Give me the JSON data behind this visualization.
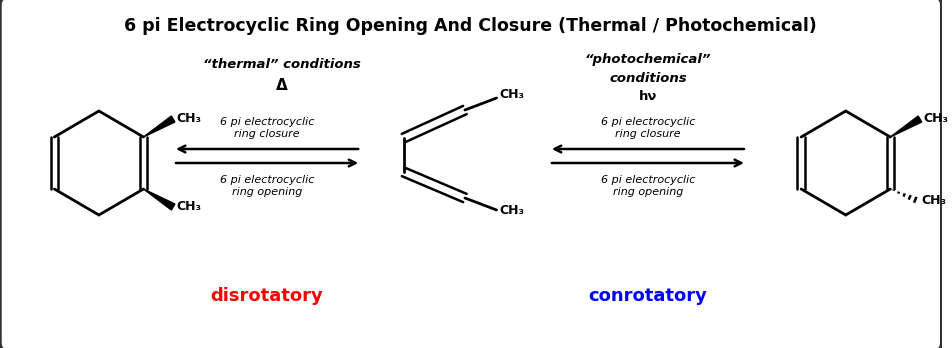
{
  "title": "6 pi Electrocyclic Ring Opening And Closure (Thermal / Photochemical)",
  "title_fontsize": 12.5,
  "bg_color": "#ffffff",
  "border_color": "#333333",
  "thermal_label_line1": "“thermal” conditions",
  "thermal_label_line2": "Δ",
  "photo_label_line1": "“photochemical”",
  "photo_label_line2": "conditions",
  "photo_label_line3": "hν",
  "closure_text": "6 pi electrocyclic\nring closure",
  "opening_text": "6 pi electrocyclic\nring opening",
  "disrotatory_text": "disrotatory",
  "conrotatory_text": "conrotatory",
  "disrotatory_color": "#ff0000",
  "conrotatory_color": "#0000ff",
  "text_color": "#000000"
}
